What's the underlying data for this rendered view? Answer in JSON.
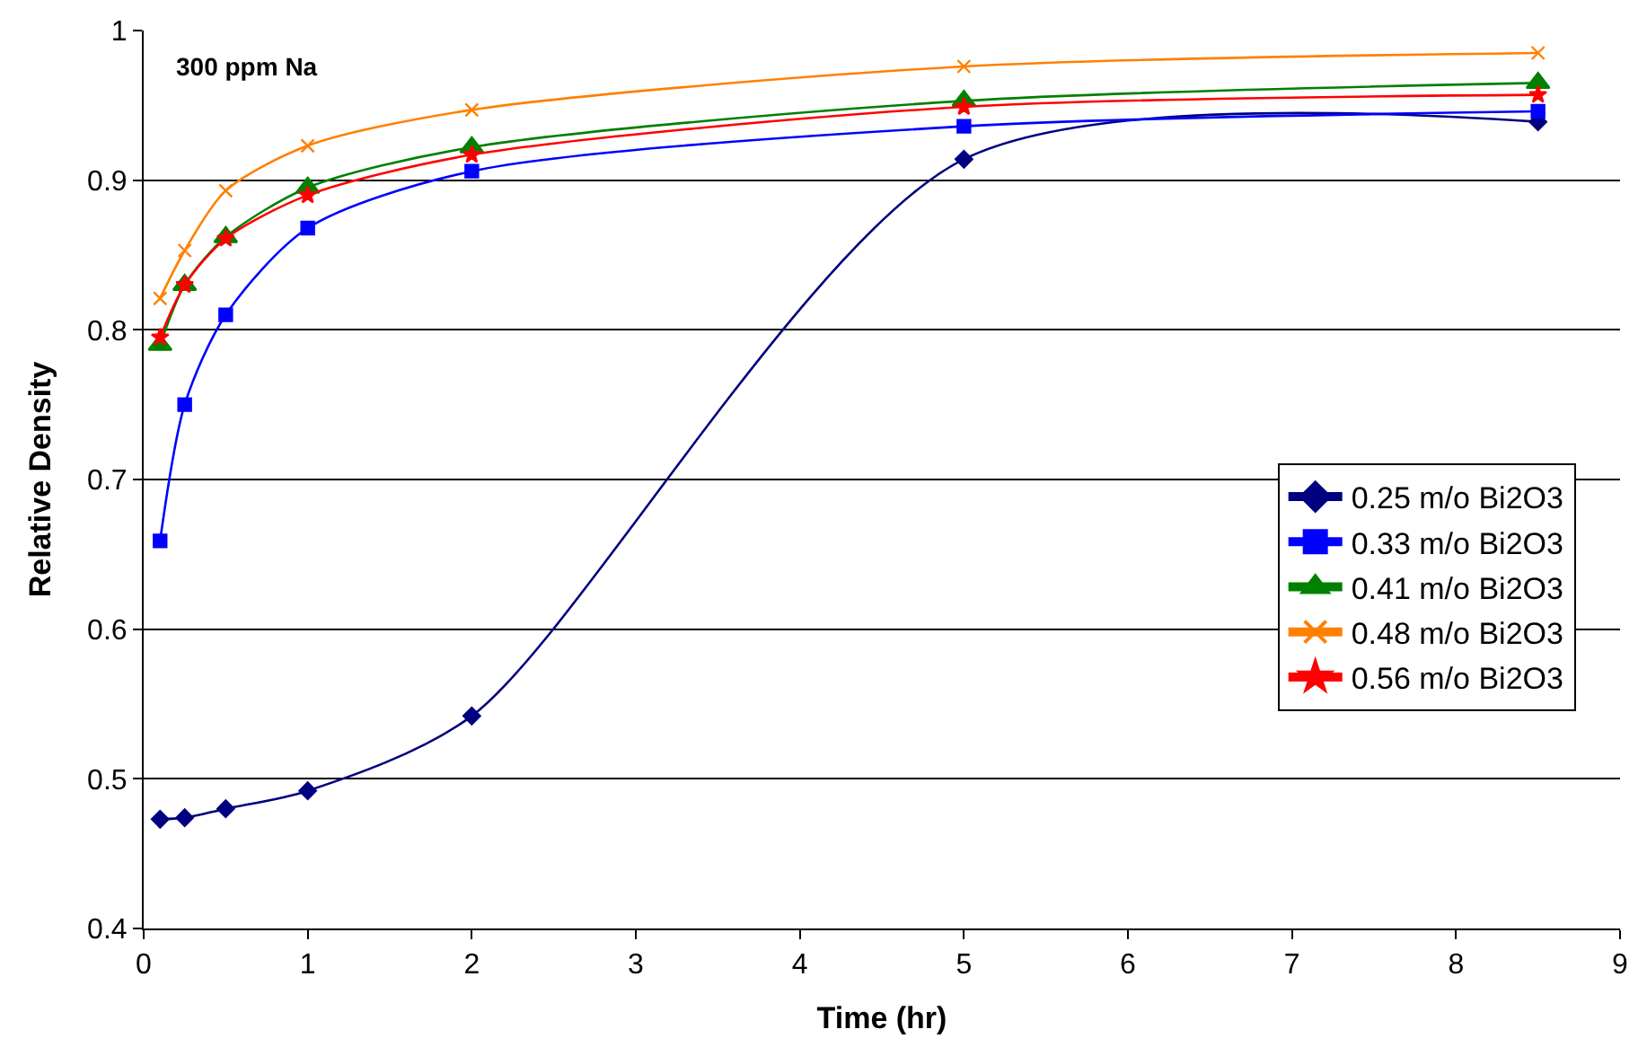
{
  "chart_data": {
    "type": "line",
    "xlabel": "Time (hr)",
    "ylabel": "Relative Density",
    "x": [
      0.1,
      0.25,
      0.5,
      1,
      2,
      5,
      8.5
    ],
    "series": [
      {
        "name": "0.25 m/o Bi2O3",
        "color": "#000080",
        "marker": "diamond",
        "values": [
          0.473,
          0.474,
          0.48,
          0.492,
          0.542,
          0.914,
          0.939
        ]
      },
      {
        "name": "0.33 m/o Bi2O3",
        "color": "#0000ff",
        "marker": "square",
        "values": [
          0.659,
          0.75,
          0.81,
          0.868,
          0.906,
          0.936,
          0.946
        ]
      },
      {
        "name": "0.41 m/o Bi2O3",
        "color": "#008000",
        "marker": "triangle",
        "values": [
          0.79,
          0.83,
          0.862,
          0.895,
          0.922,
          0.953,
          0.965
        ]
      },
      {
        "name": "0.48 m/o Bi2O3",
        "color": "#ff8000",
        "marker": "cross",
        "values": [
          0.821,
          0.853,
          0.893,
          0.923,
          0.947,
          0.976,
          0.985
        ]
      },
      {
        "name": "0.56 m/o Bi2O3",
        "color": "#ff0000",
        "marker": "star",
        "values": [
          0.795,
          0.83,
          0.861,
          0.89,
          0.917,
          0.949,
          0.957
        ]
      }
    ],
    "xlim": [
      0,
      9
    ],
    "xticks": [
      0,
      1,
      2,
      3,
      4,
      5,
      6,
      7,
      8,
      9
    ],
    "ylim": [
      0.4,
      1
    ],
    "yticks": [
      0.4,
      0.5,
      0.6,
      0.7,
      0.8,
      0.9,
      1
    ],
    "grid": "y",
    "legend": "right",
    "line_style": "solid",
    "annotations": [
      "300 ppm Na"
    ]
  }
}
